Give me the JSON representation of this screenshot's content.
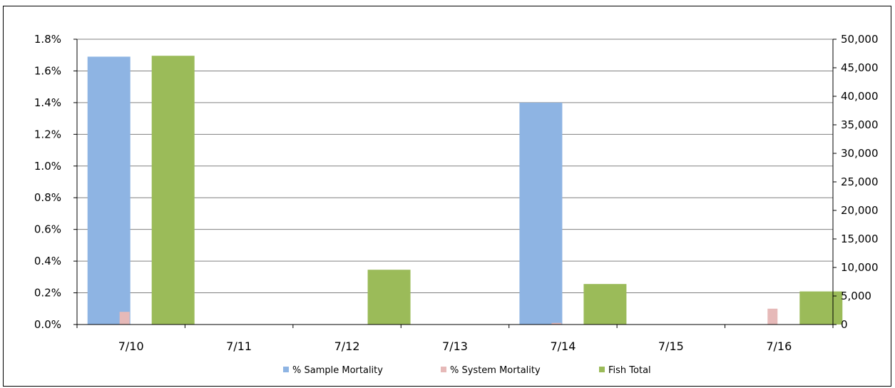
{
  "chart_data": {
    "type": "bar",
    "categories": [
      "7/10",
      "7/11",
      "7/12",
      "7/13",
      "7/14",
      "7/15",
      "7/16"
    ],
    "series": [
      {
        "name": "% Sample Mortality",
        "axis": "left",
        "color": "#8eb4e3",
        "values": [
          1.69,
          0,
          0,
          0,
          1.4,
          0,
          0
        ]
      },
      {
        "name": "% System Mortality",
        "axis": "left",
        "color": "#e6b9b8",
        "values": [
          0.08,
          0,
          0,
          0,
          0.01,
          0,
          0.1
        ]
      },
      {
        "name": "Fish Total",
        "axis": "right",
        "color": "#9bbb59",
        "values": [
          47100,
          0,
          9600,
          0,
          7100,
          0,
          5800
        ]
      }
    ],
    "y_left": {
      "min": 0,
      "max": 1.8,
      "step": 0.2,
      "tick_labels": [
        "0.0%",
        "0.2%",
        "0.4%",
        "0.6%",
        "0.8%",
        "1.0%",
        "1.2%",
        "1.4%",
        "1.6%",
        "1.8%"
      ]
    },
    "y_right": {
      "min": 0,
      "max": 50000,
      "step": 5000,
      "tick_labels": [
        "0",
        "5,000",
        "10,000",
        "15,000",
        "20,000",
        "25,000",
        "30,000",
        "35,000",
        "40,000",
        "45,000",
        "50,000"
      ]
    },
    "grid": true,
    "legend": "bottom"
  }
}
